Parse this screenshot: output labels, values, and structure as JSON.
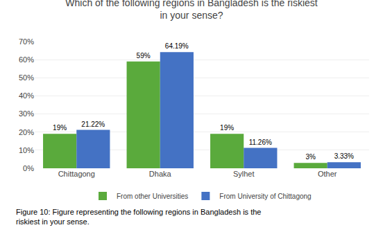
{
  "chart_data": {
    "type": "bar",
    "title": "Which of the following regions in Bangladesh is the riskiest\nin your sense?",
    "categories": [
      "Chittagong",
      "Dhaka",
      "Sylhet",
      "Other"
    ],
    "series": [
      {
        "name": "From other Universities",
        "color": "#5aaa3c",
        "values": [
          19,
          59,
          19,
          3
        ],
        "value_labels": [
          "19%",
          "59%",
          "19%",
          "3%"
        ]
      },
      {
        "name": "From University of Chittagong",
        "color": "#4472c4",
        "values": [
          21.22,
          64.19,
          11.26,
          3.33
        ],
        "value_labels": [
          "21.22%",
          "64.19%",
          "11.26%",
          "3.33%"
        ]
      }
    ],
    "ylim": [
      0,
      70
    ],
    "yticks": [
      {
        "value": 0,
        "label": "0%"
      },
      {
        "value": 10,
        "label": "10%"
      },
      {
        "value": 20,
        "label": "20%"
      },
      {
        "value": 30,
        "label": "30%"
      },
      {
        "value": 40,
        "label": "40%"
      },
      {
        "value": 50,
        "label": "50%"
      },
      {
        "value": 60,
        "label": "60%"
      },
      {
        "value": 70,
        "label": "70%"
      }
    ],
    "grid": true,
    "data_labels": true,
    "legend": "bottom",
    "annotations": [
      "Figure 10: Figure representing the following regions in Bangladesh is the\nriskiest in your sense."
    ]
  }
}
